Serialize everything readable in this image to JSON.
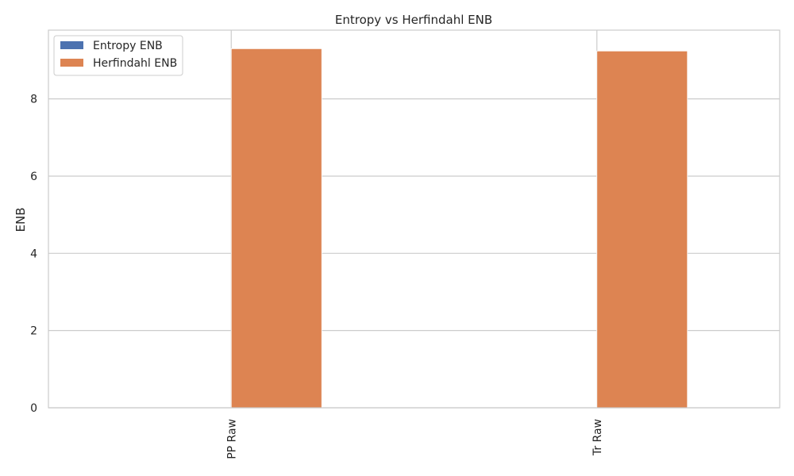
{
  "chart_data": {
    "type": "bar",
    "title": "Entropy vs Herfindahl ENB",
    "xlabel": "",
    "ylabel": "ENB",
    "categories": [
      "PP Raw",
      "Tr Raw"
    ],
    "series": [
      {
        "name": "Entropy ENB",
        "values": [
          0,
          0
        ],
        "color": "#4c72b0"
      },
      {
        "name": "Herfindahl ENB",
        "values": [
          9.3,
          9.24
        ],
        "color": "#dd8452"
      }
    ],
    "ylim": [
      0,
      9.78
    ],
    "yticks": [
      0,
      2,
      4,
      6,
      8
    ],
    "grid": true,
    "legend_position": "top-left",
    "gridline_color": "#cccccc"
  }
}
